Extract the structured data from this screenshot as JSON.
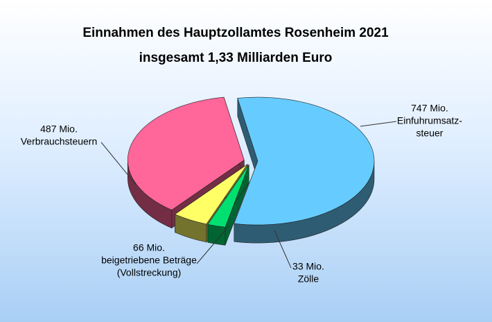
{
  "chart_data": {
    "type": "pie3d",
    "title": "Einnahmen des Hauptzollamtes Rosenheim 2021",
    "subtitle": "insgesamt 1,33 Milliarden Euro",
    "categories": [
      [
        "Einfuhrumsatz-",
        "steuer"
      ],
      [
        "Zölle"
      ],
      [
        "beigetriebene Beträge",
        "(Vollstreckung)"
      ],
      [
        "Verbrauchsteuern"
      ]
    ],
    "values": [
      747,
      33,
      66,
      487
    ],
    "value_labels": [
      "747 Mio.",
      "33 Mio.",
      "66 Mio.",
      "487 Mio."
    ],
    "colors": [
      "#66ccff",
      "#00e070",
      "#ffff66",
      "#ff6699"
    ]
  }
}
